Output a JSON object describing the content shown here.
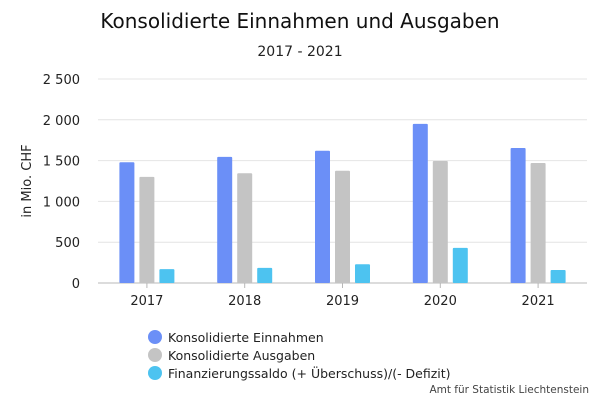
{
  "chart_data": {
    "type": "bar",
    "title": "Konsolidierte Einnahmen und Ausgaben",
    "subtitle": "2017 - 2021",
    "ylabel": "in Mio. CHF",
    "xlabel": "",
    "ylim": [
      0,
      2500
    ],
    "yticks": [
      0,
      500,
      1000,
      1500,
      2000,
      2500
    ],
    "ytick_labels": [
      "0",
      "500",
      "1 000",
      "1 500",
      "2 000",
      "2 500"
    ],
    "grid": true,
    "legend_position": "bottom-left",
    "categories": [
      "2017",
      "2018",
      "2019",
      "2020",
      "2021"
    ],
    "series": [
      {
        "name": "Konsolidierte Einnahmen",
        "color": "#6b8ff7",
        "values": [
          1480,
          1545,
          1620,
          1950,
          1655
        ]
      },
      {
        "name": "Konsolidierte Ausgaben",
        "color": "#c4c4c4",
        "values": [
          1300,
          1345,
          1375,
          1495,
          1470
        ]
      },
      {
        "name": "Finanzierungssaldo (+ Überschuss)/(- Defizit)",
        "color": "#4dc3f0",
        "values": [
          170,
          185,
          230,
          430,
          160
        ]
      }
    ],
    "source": "Amt für Statistik Liechtenstein"
  }
}
